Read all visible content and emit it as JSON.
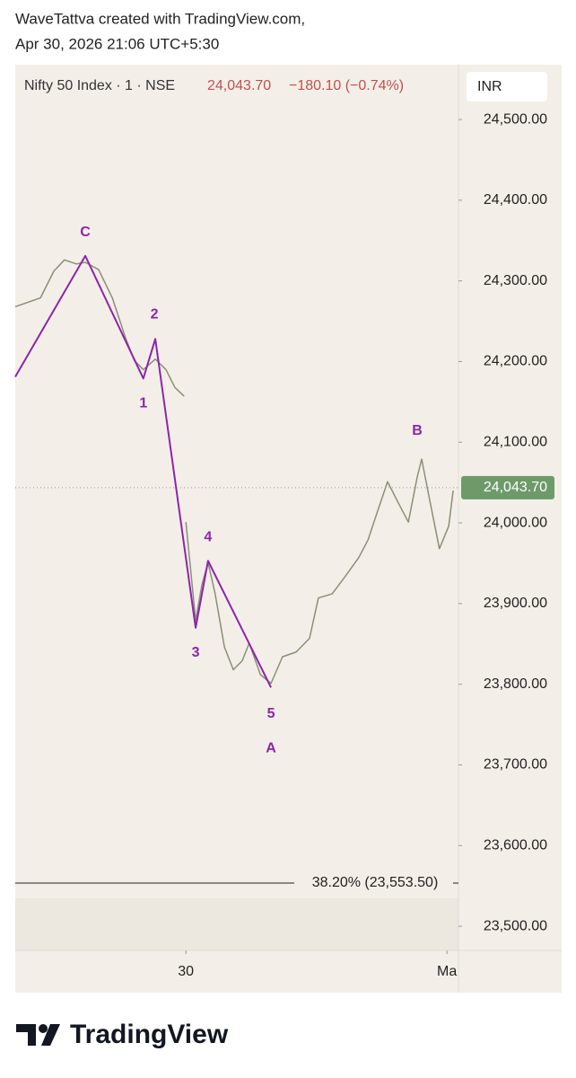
{
  "header": {
    "credit": "WaveTattva created with TradingView.com,",
    "timestamp": "Apr 30, 2026 21:06 UTC+5:30",
    "symbol": "Nifty 50 Index · 1 · NSE",
    "last": {
      "value": 24043.7,
      "label": "24,043.70"
    },
    "change": "−180.10 (−0.74%)",
    "currency": "INR"
  },
  "chart_data": {
    "type": "line",
    "xlim": [
      0,
      100
    ],
    "ylim": [
      23470,
      24568
    ],
    "xticks": [
      {
        "value": 38.5,
        "label": "30"
      },
      {
        "value": 97.4,
        "label": "Ma"
      }
    ],
    "yticks": [
      {
        "value": 24500,
        "label": "24,500.00"
      },
      {
        "value": 24400,
        "label": "24,400.00"
      },
      {
        "value": 24300,
        "label": "24,300.00"
      },
      {
        "value": 24200,
        "label": "24,200.00"
      },
      {
        "value": 24100,
        "label": "24,100.00"
      },
      {
        "value": 24000,
        "label": "24,000.00"
      },
      {
        "value": 23900,
        "label": "23,900.00"
      },
      {
        "value": 23800,
        "label": "23,800.00"
      },
      {
        "value": 23700,
        "label": "23,700.00"
      },
      {
        "value": 23600,
        "label": "23,600.00"
      },
      {
        "value": 23500,
        "label": "23,500.00"
      }
    ],
    "price": {
      "color": "#8a8f76",
      "x": [
        0,
        2.6,
        5.7,
        8.7,
        11.1,
        13.8,
        15.8,
        18.8,
        21.9,
        24.9,
        26.9,
        28.9,
        31.6,
        34.0,
        36.0,
        38.1,
        null,
        38.5,
        39.5,
        40.7,
        42.1,
        43.5,
        45.1,
        47.2,
        49.2,
        51.2,
        52.8,
        55.3,
        57.7,
        60.3,
        63.4,
        66.4,
        68.4,
        71.5,
        74.5,
        77.5,
        79.6,
        81.6,
        84.0,
        86.6,
        88.7,
        90.7,
        91.7,
        93.7,
        95.7,
        97.8,
        98.8
      ],
      "values": [
        24268,
        24273,
        24279,
        24312,
        24326,
        24321,
        24323,
        24314,
        24279,
        24229,
        24201,
        24190,
        24203,
        24190,
        24168,
        24157,
        null,
        24001,
        23946,
        23879,
        23923,
        23951,
        23912,
        23846,
        23818,
        23829,
        23851,
        23812,
        23801,
        23834,
        23840,
        23857,
        23907,
        23912,
        23934,
        23957,
        23979,
        24012,
        24051,
        24023,
        24001,
        24057,
        24079,
        24023,
        23968,
        23996,
        24040
      ]
    },
    "wave": {
      "color": "#8e24aa",
      "x": [
        0,
        15.8,
        28.9,
        31.6,
        40.7,
        43.5,
        57.7
      ],
      "values": [
        24181,
        24331,
        24179,
        24228,
        23870,
        23953,
        23796
      ]
    },
    "annotations": [
      {
        "text": "C",
        "x": 15.8,
        "y": 24360
      },
      {
        "text": "1",
        "x": 28.9,
        "y": 24148
      },
      {
        "text": "2",
        "x": 31.4,
        "y": 24258
      },
      {
        "text": "3",
        "x": 40.7,
        "y": 23839
      },
      {
        "text": "4",
        "x": 43.5,
        "y": 23982
      },
      {
        "text": "5",
        "x": 57.7,
        "y": 23763
      },
      {
        "text": "A",
        "x": 57.7,
        "y": 23720
      },
      {
        "text": "B",
        "x": 90.7,
        "y": 24114
      }
    ],
    "fib_level": {
      "value": 23553.5,
      "label": "38.20% (23,553.50)"
    }
  },
  "footer": {
    "logo": "TradingView"
  }
}
